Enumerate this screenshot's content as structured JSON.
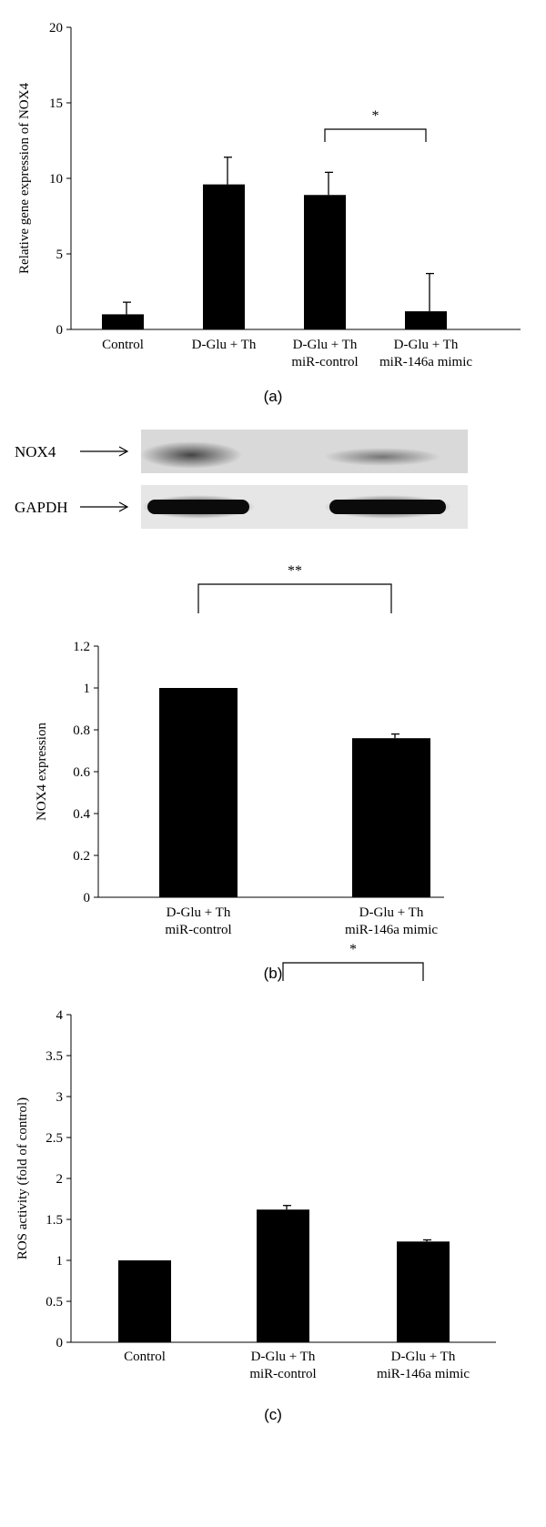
{
  "chart_data": [
    {
      "type": "bar",
      "panel": "(a)",
      "ylabel": "Relative gene expression of NOX4",
      "ylim": [
        0,
        20
      ],
      "yticks": [
        "0",
        "5",
        "10",
        "15",
        "20"
      ],
      "categories": [
        [
          "Control"
        ],
        [
          "D-Glu + Th"
        ],
        [
          "D-Glu + Th",
          "miR-control"
        ],
        [
          "D-Glu + Th",
          "miR-146a mimic"
        ]
      ],
      "values": [
        1.0,
        9.6,
        8.9,
        1.2
      ],
      "errors": [
        0.8,
        1.8,
        1.5,
        2.5
      ],
      "significance": [
        {
          "from": 2,
          "to": 3,
          "label": "*"
        }
      ]
    },
    {
      "type": "bar",
      "panel": "(b)",
      "ylabel": "NOX4 expression",
      "ylim": [
        0,
        1.2
      ],
      "yticks": [
        "0",
        "0.2",
        "0.4",
        "0.6",
        "0.8",
        "1",
        "1.2"
      ],
      "categories": [
        [
          "D-Glu + Th",
          "miR-control"
        ],
        [
          "D-Glu + Th",
          "miR-146a mimic"
        ]
      ],
      "values": [
        1.0,
        0.76
      ],
      "errors": [
        0.0,
        0.02
      ],
      "significance": [
        {
          "from": 0,
          "to": 1,
          "label": "**"
        }
      ],
      "blot": {
        "rows": [
          {
            "label": "NOX4",
            "arrow": "⟶"
          },
          {
            "label": "GAPDH",
            "arrow": "⟶"
          }
        ]
      }
    },
    {
      "type": "bar",
      "panel": "(c)",
      "ylabel": "ROS activity (fold of control)",
      "ylim": [
        0,
        4
      ],
      "yticks": [
        "0",
        "0.5",
        "1",
        "1.5",
        "2",
        "2.5",
        "3",
        "3.5",
        "4"
      ],
      "categories": [
        [
          "Control"
        ],
        [
          "D-Glu + Th",
          "miR-control"
        ],
        [
          "D-Glu + Th",
          "miR-146a mimic"
        ]
      ],
      "values": [
        1.0,
        1.62,
        1.23
      ],
      "errors": [
        0.0,
        0.05,
        0.02
      ],
      "significance": [
        {
          "from": 1,
          "to": 2,
          "label": "*"
        }
      ]
    }
  ]
}
